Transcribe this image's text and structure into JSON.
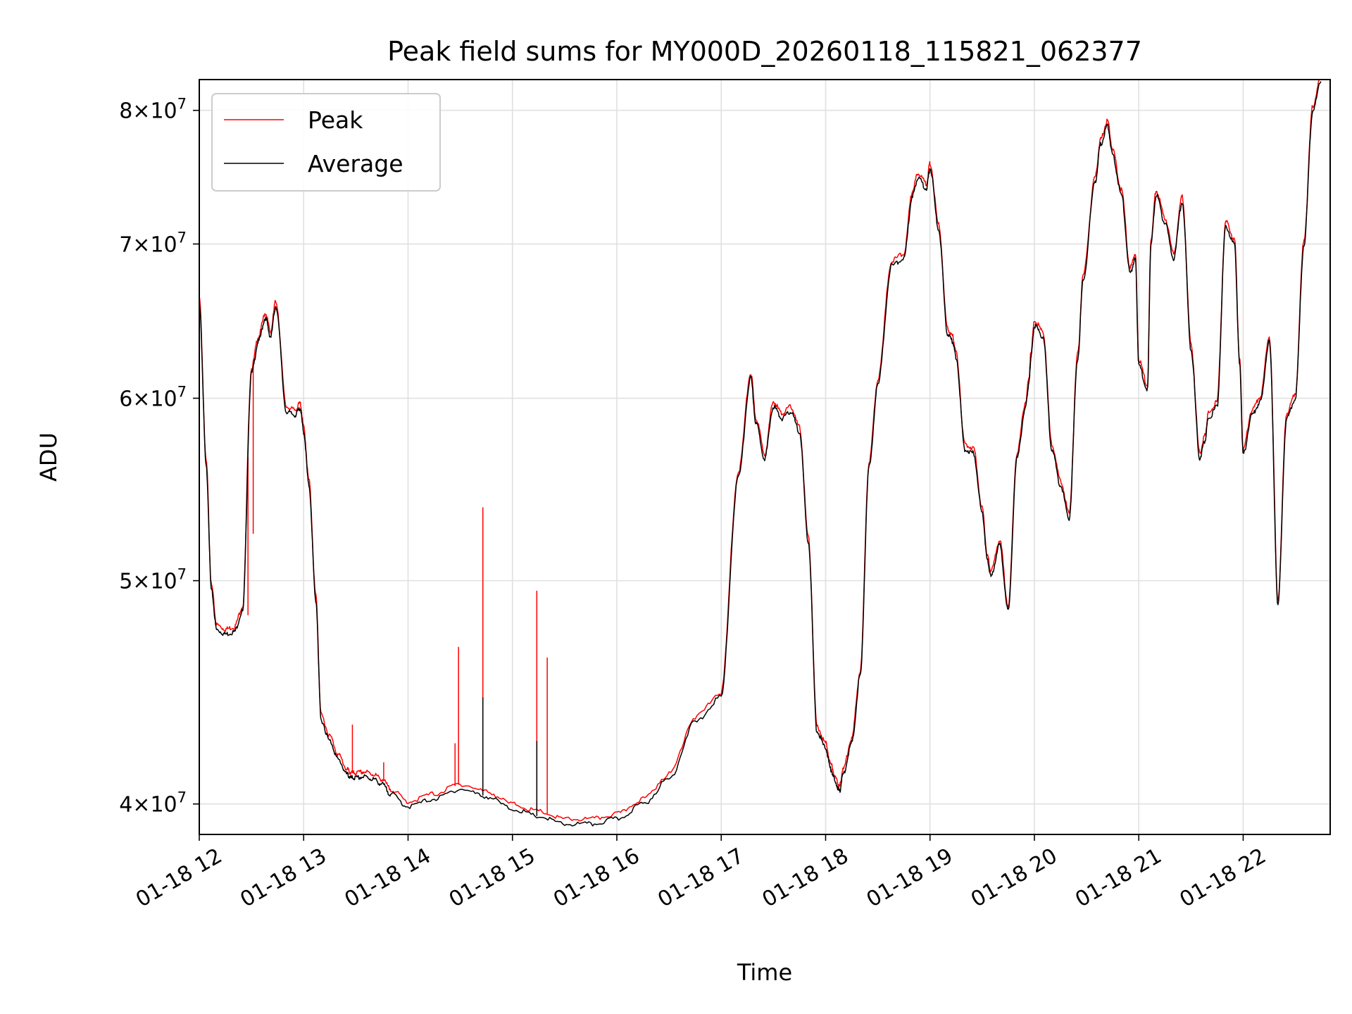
{
  "chart_data": {
    "type": "line",
    "title": "Peak field sums for MY000D_20260118_115821_062377",
    "xlabel": "Time",
    "ylabel": "ADU",
    "y_scale": "log",
    "ylim": [
      38800000,
      82500000
    ],
    "xlim": [
      "2026-01-18 12:00",
      "2026-01-18 22:50"
    ],
    "grid": true,
    "legend_location": "top-left",
    "x_tick_labels": [
      "01-18 12",
      "01-18 13",
      "01-18 14",
      "01-18 15",
      "01-18 16",
      "01-18 17",
      "01-18 18",
      "01-18 19",
      "01-18 20",
      "01-18 21",
      "01-18 22"
    ],
    "x_tick_times": [
      "2026-01-18 12:00",
      "2026-01-18 13:00",
      "2026-01-18 14:00",
      "2026-01-18 15:00",
      "2026-01-18 16:00",
      "2026-01-18 17:00",
      "2026-01-18 18:00",
      "2026-01-18 19:00",
      "2026-01-18 20:00",
      "2026-01-18 21:00",
      "2026-01-18 22:00"
    ],
    "y_ticks": [
      {
        "value": 40000000,
        "mant": "4",
        "exp": "7"
      },
      {
        "value": 50000000,
        "mant": "5",
        "exp": "7"
      },
      {
        "value": 60000000,
        "mant": "6",
        "exp": "7"
      },
      {
        "value": 70000000,
        "mant": "7",
        "exp": "7"
      },
      {
        "value": 80000000,
        "mant": "8",
        "exp": "7"
      }
    ],
    "series": [
      {
        "name": "Average",
        "color": "#000000"
      },
      {
        "name": "Peak",
        "color": "#ff0000"
      }
    ],
    "x": [
      "12:00",
      "12:04",
      "12:07",
      "12:10",
      "12:15",
      "12:20",
      "12:25",
      "12:30",
      "12:34",
      "12:38",
      "12:41",
      "12:44",
      "12:50",
      "12:55",
      "12:58",
      "13:00",
      "13:03",
      "13:07",
      "13:10",
      "13:15",
      "13:20",
      "13:25",
      "13:27",
      "13:30",
      "13:35",
      "13:40",
      "13:45",
      "13:50",
      "14:00",
      "14:15",
      "14:30",
      "14:45",
      "15:00",
      "15:15",
      "15:30",
      "15:45",
      "16:00",
      "16:15",
      "16:30",
      "16:45",
      "17:00",
      "17:10",
      "17:17",
      "17:20",
      "17:25",
      "17:30",
      "17:35",
      "17:40",
      "17:45",
      "17:50",
      "17:55",
      "18:00",
      "18:03",
      "18:06",
      "18:08",
      "18:10",
      "18:15",
      "18:20",
      "18:25",
      "18:30",
      "18:38",
      "18:45",
      "18:50",
      "18:53",
      "18:58",
      "19:00",
      "19:05",
      "19:10",
      "19:13",
      "19:15",
      "19:20",
      "19:25",
      "19:30",
      "19:33",
      "19:35",
      "19:40",
      "19:45",
      "19:50",
      "19:55",
      "19:57",
      "19:58",
      "20:00",
      "20:05",
      "20:10",
      "20:15",
      "20:20",
      "20:25",
      "20:28",
      "20:35",
      "20:38",
      "20:42",
      "20:45",
      "20:50",
      "20:55",
      "20:58",
      "21:00",
      "21:05",
      "21:07",
      "21:10",
      "21:15",
      "21:20",
      "21:25",
      "21:30",
      "21:35",
      "21:38",
      "21:40",
      "21:45",
      "21:50",
      "21:55",
      "21:58",
      "22:00",
      "22:05",
      "22:10",
      "22:15",
      "22:20",
      "22:25",
      "22:30",
      "22:35",
      "22:40",
      "22:45",
      "22:50"
    ],
    "average": [
      66000000,
      56000000,
      49500000,
      47600000,
      47400000,
      47500000,
      48500000,
      61500000,
      63500000,
      65000000,
      63800000,
      65800000,
      59200000,
      59000000,
      59400000,
      58000000,
      55000000,
      49000000,
      43500000,
      42600000,
      41800000,
      41200000,
      41050000,
      41050000,
      41100000,
      41000000,
      40800000,
      40400000,
      39900000,
      40200000,
      40600000,
      40300000,
      39800000,
      39500000,
      39200000,
      39200000,
      39400000,
      40000000,
      41000000,
      43400000,
      44500000,
      55500000,
      61200000,
      58500000,
      56500000,
      59500000,
      58800000,
      59200000,
      58000000,
      52000000,
      43000000,
      42300000,
      41400000,
      40800000,
      40500000,
      41200000,
      42500000,
      45500000,
      56000000,
      60800000,
      68500000,
      69000000,
      73500000,
      74800000,
      74000000,
      75500000,
      71000000,
      64000000,
      63500000,
      62500000,
      57000000,
      56800000,
      53500000,
      51000000,
      50200000,
      51800000,
      48500000,
      56500000,
      59500000,
      61000000,
      62500000,
      64500000,
      63800000,
      57000000,
      55000000,
      53200000,
      62500000,
      67500000,
      74500000,
      77300000,
      78800000,
      76500000,
      73500000,
      68000000,
      69000000,
      62000000,
      60500000,
      70000000,
      73500000,
      71500000,
      69000000,
      73000000,
      63000000,
      56500000,
      57500000,
      58800000,
      59500000,
      71200000,
      70000000,
      62000000,
      56700000,
      59000000,
      59800000,
      63500000,
      48800000,
      58800000,
      60000000,
      70000000,
      80000000,
      82500000
    ],
    "peak_offset_fraction": 0.005,
    "peak_spikes": [
      {
        "time": "12:31",
        "value": 52400000
      },
      {
        "time": "12:28",
        "value": 48300000
      },
      {
        "time": "13:28",
        "value": 43300000
      },
      {
        "time": "13:46",
        "value": 41700000
      },
      {
        "time": "14:27",
        "value": 42500000
      },
      {
        "time": "14:29",
        "value": 46800000
      },
      {
        "time": "14:43",
        "value": 53800000
      },
      {
        "time": "15:14",
        "value": 49500000
      },
      {
        "time": "15:20",
        "value": 46300000
      }
    ],
    "average_spikes": [
      {
        "time": "14:43",
        "value": 44500000
      },
      {
        "time": "15:14",
        "value": 42600000
      }
    ]
  }
}
